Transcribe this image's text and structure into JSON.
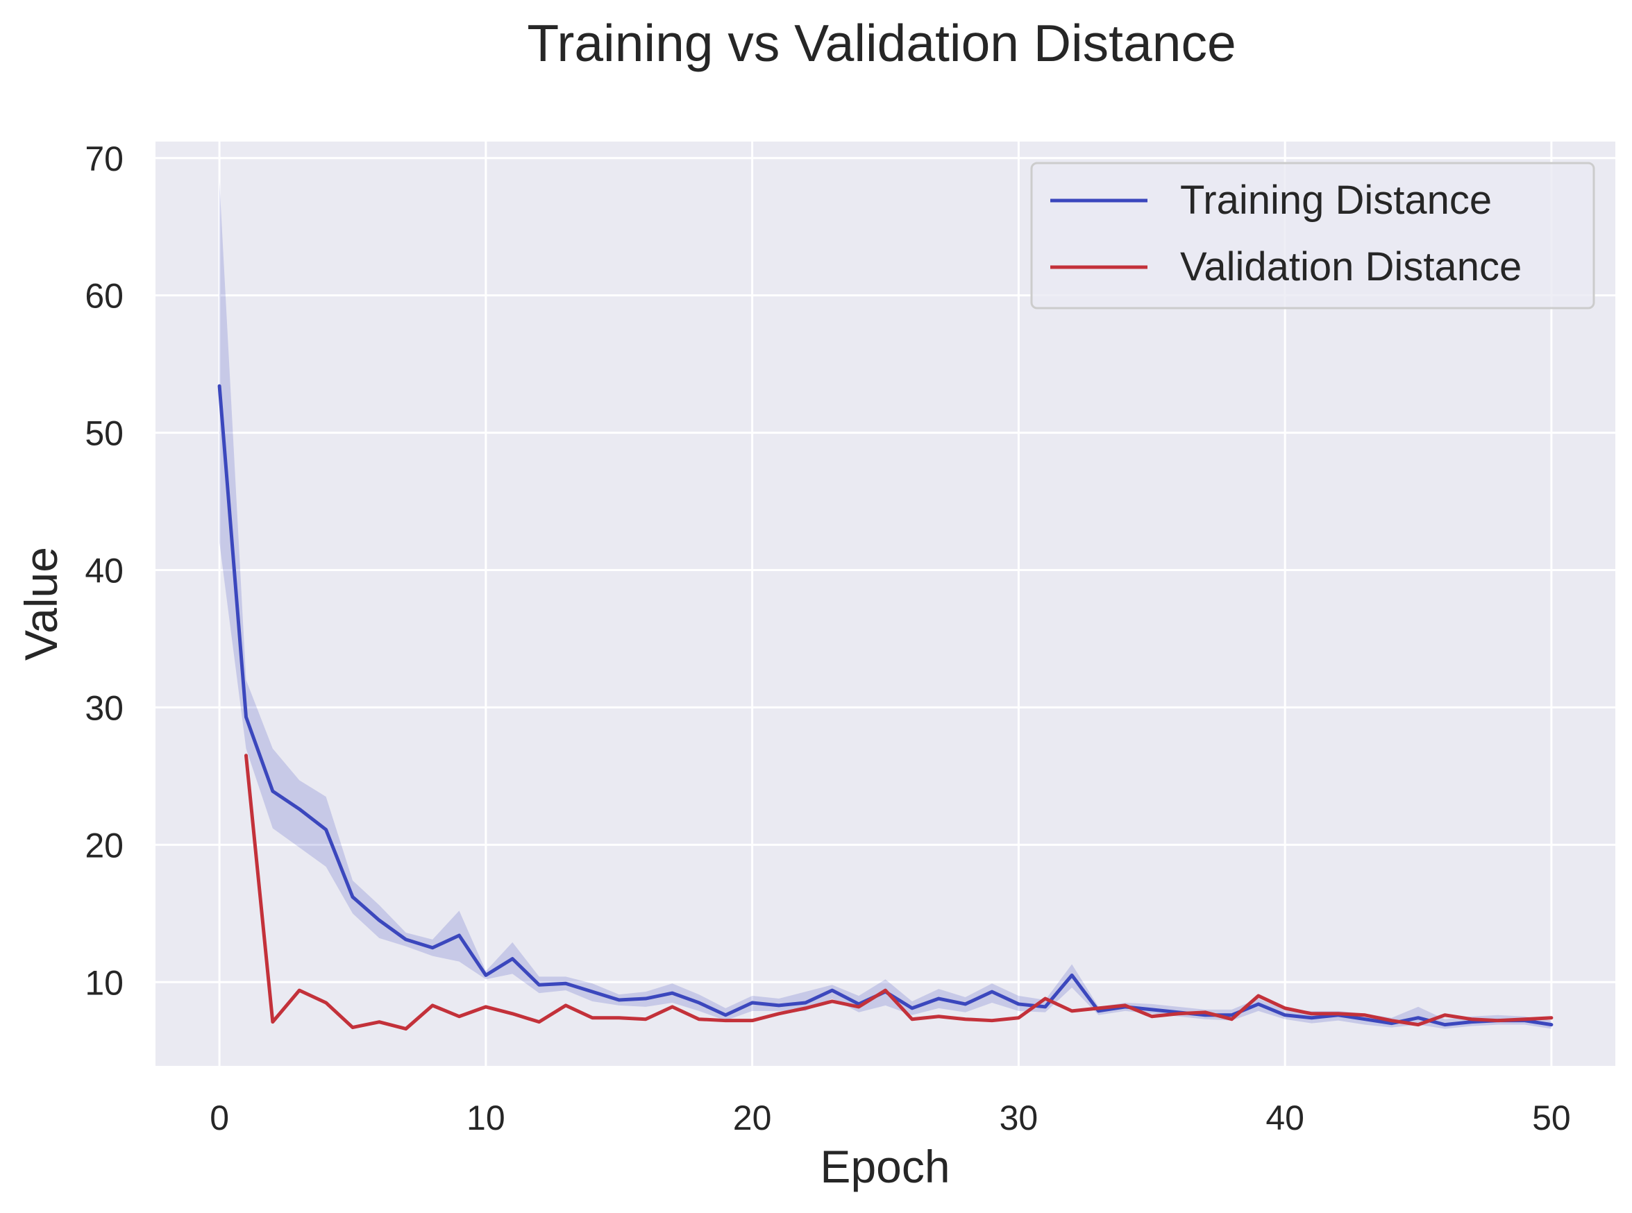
{
  "chart_data": {
    "type": "line",
    "title": "Training vs Validation Distance",
    "xlabel": "Epoch",
    "ylabel": "Value",
    "xlim": [
      -2.4,
      52.4
    ],
    "ylim": [
      3.9,
      71.2
    ],
    "xticks": [
      0,
      10,
      20,
      30,
      40,
      50
    ],
    "yticks": [
      10,
      20,
      30,
      40,
      50,
      60,
      70
    ],
    "grid": true,
    "legend_position": "top-right",
    "series": [
      {
        "name": "Training Distance",
        "color": "#3b47bd",
        "x": [
          0,
          1,
          2,
          3,
          4,
          5,
          6,
          7,
          8,
          9,
          10,
          11,
          12,
          13,
          14,
          15,
          16,
          17,
          18,
          19,
          20,
          21,
          22,
          23,
          24,
          25,
          26,
          27,
          28,
          29,
          30,
          31,
          32,
          33,
          34,
          35,
          36,
          37,
          38,
          39,
          40,
          41,
          42,
          43,
          44,
          45,
          46,
          47,
          48,
          49,
          50
        ],
        "y": [
          53.4,
          29.3,
          23.9,
          22.6,
          21.1,
          16.2,
          14.5,
          13.1,
          12.5,
          13.4,
          10.5,
          11.7,
          9.8,
          9.9,
          9.3,
          8.7,
          8.8,
          9.2,
          8.5,
          7.6,
          8.5,
          8.3,
          8.5,
          9.4,
          8.4,
          9.3,
          8.1,
          8.8,
          8.4,
          9.3,
          8.4,
          8.2,
          10.5,
          7.9,
          8.2,
          8.0,
          7.8,
          7.6,
          7.6,
          8.4,
          7.6,
          7.4,
          7.6,
          7.3,
          7.0,
          7.4,
          6.9,
          7.1,
          7.2,
          7.2,
          6.9
        ],
        "ci_lower": [
          42.0,
          27.0,
          21.2,
          19.8,
          18.4,
          15.0,
          13.2,
          12.6,
          11.9,
          11.5,
          10.2,
          10.6,
          9.2,
          9.4,
          8.6,
          8.3,
          8.2,
          8.5,
          7.9,
          7.2,
          7.9,
          7.9,
          7.9,
          8.8,
          7.8,
          8.3,
          7.6,
          8.1,
          7.8,
          8.5,
          7.9,
          7.8,
          9.6,
          7.6,
          7.9,
          7.7,
          7.5,
          7.3,
          7.2,
          7.9,
          7.3,
          7.0,
          7.2,
          6.9,
          6.7,
          6.9,
          6.6,
          6.8,
          6.9,
          6.9,
          6.6
        ],
        "ci_upper": [
          68.3,
          32.0,
          27.0,
          24.7,
          23.5,
          17.4,
          15.6,
          13.6,
          13.1,
          15.2,
          10.8,
          12.9,
          10.4,
          10.4,
          9.9,
          9.1,
          9.3,
          9.9,
          9.1,
          8.1,
          9.0,
          8.8,
          9.3,
          9.8,
          9.0,
          10.2,
          8.6,
          9.5,
          8.9,
          9.9,
          9.0,
          8.7,
          11.3,
          8.2,
          8.5,
          8.4,
          8.2,
          8.0,
          8.0,
          8.8,
          8.0,
          7.9,
          7.9,
          7.7,
          7.4,
          8.2,
          7.3,
          7.5,
          7.6,
          7.5,
          7.2
        ]
      },
      {
        "name": "Validation Distance",
        "color": "#c3313a",
        "x": [
          1,
          2,
          3,
          4,
          5,
          6,
          7,
          8,
          9,
          10,
          11,
          12,
          13,
          14,
          15,
          16,
          17,
          18,
          19,
          20,
          21,
          22,
          23,
          24,
          25,
          26,
          27,
          28,
          29,
          30,
          31,
          32,
          33,
          34,
          35,
          36,
          37,
          38,
          39,
          40,
          41,
          42,
          43,
          44,
          45,
          46,
          47,
          48,
          49,
          50
        ],
        "y": [
          26.5,
          7.1,
          9.4,
          8.5,
          6.7,
          7.1,
          6.6,
          8.3,
          7.5,
          8.2,
          7.7,
          7.1,
          8.3,
          7.4,
          7.4,
          7.3,
          8.2,
          7.3,
          7.2,
          7.2,
          7.7,
          8.1,
          8.6,
          8.2,
          9.4,
          7.3,
          7.5,
          7.3,
          7.2,
          7.4,
          8.8,
          7.9,
          8.1,
          8.3,
          7.5,
          7.7,
          7.8,
          7.3,
          9.0,
          8.1,
          7.7,
          7.7,
          7.6,
          7.2,
          6.9,
          7.6,
          7.3,
          7.2,
          7.3,
          7.4
        ]
      }
    ]
  }
}
